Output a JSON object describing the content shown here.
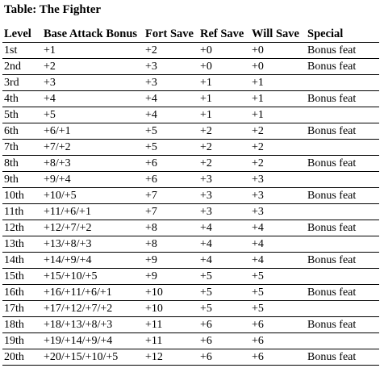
{
  "caption": "Table: The Fighter",
  "columns": [
    "Level",
    "Base Attack Bonus",
    "Fort Save",
    "Ref Save",
    "Will Save",
    "Special"
  ],
  "rows": [
    [
      "1st",
      "+1",
      "+2",
      "+0",
      "+0",
      "Bonus feat"
    ],
    [
      "2nd",
      "+2",
      "+3",
      "+0",
      "+0",
      "Bonus feat"
    ],
    [
      "3rd",
      "+3",
      "+3",
      "+1",
      "+1",
      ""
    ],
    [
      "4th",
      "+4",
      "+4",
      "+1",
      "+1",
      "Bonus feat"
    ],
    [
      "5th",
      "+5",
      "+4",
      "+1",
      "+1",
      ""
    ],
    [
      "6th",
      "+6/+1",
      "+5",
      "+2",
      "+2",
      "Bonus feat"
    ],
    [
      "7th",
      "+7/+2",
      "+5",
      "+2",
      "+2",
      ""
    ],
    [
      "8th",
      "+8/+3",
      "+6",
      "+2",
      "+2",
      "Bonus feat"
    ],
    [
      "9th",
      "+9/+4",
      "+6",
      "+3",
      "+3",
      ""
    ],
    [
      "10th",
      "+10/+5",
      "+7",
      "+3",
      "+3",
      "Bonus feat"
    ],
    [
      "11th",
      "+11/+6/+1",
      "+7",
      "+3",
      "+3",
      ""
    ],
    [
      "12th",
      "+12/+7/+2",
      "+8",
      "+4",
      "+4",
      "Bonus feat"
    ],
    [
      "13th",
      "+13/+8/+3",
      "+8",
      "+4",
      "+4",
      ""
    ],
    [
      "14th",
      "+14/+9/+4",
      "+9",
      "+4",
      "+4",
      "Bonus feat"
    ],
    [
      "15th",
      "+15/+10/+5",
      "+9",
      "+5",
      "+5",
      ""
    ],
    [
      "16th",
      "+16/+11/+6/+1",
      "+10",
      "+5",
      "+5",
      "Bonus feat"
    ],
    [
      "17th",
      "+17/+12/+7/+2",
      "+10",
      "+5",
      "+5",
      ""
    ],
    [
      "18th",
      "+18/+13/+8/+3",
      "+11",
      "+6",
      "+6",
      "Bonus feat"
    ],
    [
      "19th",
      "+19/+14/+9/+4",
      "+11",
      "+6",
      "+6",
      ""
    ],
    [
      "20th",
      "+20/+15/+10/+5",
      "+12",
      "+6",
      "+6",
      "Bonus feat"
    ]
  ]
}
